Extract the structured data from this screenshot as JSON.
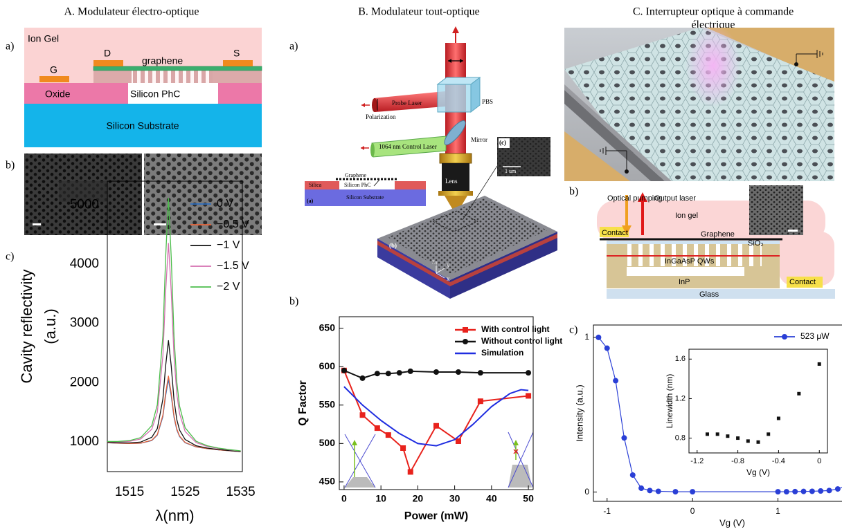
{
  "columns": [
    {
      "title": [
        "A. Modulateur électro-optique"
      ]
    },
    {
      "title": [
        "B. Modulateur tout-optique"
      ]
    },
    {
      "title": [
        "C. Interrupteur optique à commande",
        "électrique"
      ]
    }
  ],
  "panel_labels": {
    "A": [
      "a)",
      "b)",
      "c)"
    ],
    "B": [
      "a)",
      "b)"
    ],
    "C": [
      "a)",
      "b)",
      "c)"
    ]
  },
  "diagram_a": {
    "ion_gel": "Ion Gel",
    "drain": "D",
    "graphene": "graphene",
    "source": "S",
    "gate": "G",
    "oxide": "Oxide",
    "phc": "Silicon PhC",
    "substrate": "Silicon Substrate"
  },
  "diagram_b": {
    "probe": "Probe Laser",
    "polarization": "Polarization",
    "pbs": "PBS",
    "control": "1064 nm Control Laser",
    "mirror": "Mirror",
    "lens": "Lens",
    "graphene": "Graphene",
    "silica": "Silica",
    "phc": "Silicon PhC",
    "substrate": "Silicon Substrate",
    "inset_a": "(a)",
    "inset_b": "(b)",
    "inset_c": "(c)",
    "scale": "1 um",
    "z": "z",
    "y": "y",
    "x": "x"
  },
  "diagram_c": {
    "pumping": "Optical pumping",
    "output": "Output laser",
    "gel": "Ion gel",
    "contact_left": "Contact",
    "graphene": "Graphene",
    "sio2": "SiO₂",
    "qws": "InGaAsP QWs",
    "inp": "InP",
    "contact_right": "Contact",
    "glass": "Glass"
  },
  "chart_data": [
    {
      "type": "line",
      "ylabel": [
        "Cavity reflectivity",
        "(a.u.)"
      ],
      "xlabel": "λ(nm)",
      "x": [
        1511,
        1513,
        1515,
        1517,
        1519,
        1520,
        1521,
        1521.5,
        1522,
        1522.5,
        1523,
        1523.5,
        1524,
        1525,
        1527,
        1529,
        1531,
        1533,
        1535
      ],
      "xlim": [
        1511,
        1535.3
      ],
      "xticks": [
        1515,
        1525,
        1535
      ],
      "ylim": [
        500,
        5400
      ],
      "yticks": [
        1000,
        2000,
        3000,
        4000,
        5000
      ],
      "series": [
        {
          "name": "0 V",
          "color": "#2d6fc2",
          "values": [
            988,
            979,
            974,
            978,
            1024,
            1116,
            1428,
            1785,
            2051,
            1779,
            1415,
            1204,
            1091,
            987,
            916,
            887,
            866,
            851,
            835
          ]
        },
        {
          "name": "−0.5 V",
          "color": "#e8643a",
          "values": [
            988,
            980,
            975,
            980,
            1029,
            1126,
            1454,
            1831,
            2111,
            1825,
            1441,
            1220,
            1101,
            992,
            918,
            888,
            867,
            851,
            836
          ]
        },
        {
          "name": "−1 V",
          "color": "#111111",
          "values": [
            992,
            986,
            984,
            998,
            1079,
            1226,
            1723,
            2289,
            2711,
            2283,
            1710,
            1379,
            1201,
            1042,
            936,
            897,
            873,
            855,
            839
          ]
        },
        {
          "name": "−1.5 V",
          "color": "#d46fb0",
          "values": [
            1003,
            1002,
            1011,
            1050,
            1214,
            1502,
            2456,
            3542,
            4351,
            3536,
            2443,
            1814,
            1477,
            1177,
            988,
            924,
            889,
            866,
            847
          ]
        },
        {
          "name": "−2 V",
          "color": "#4bbd4b",
          "values": [
            1008,
            1010,
            1023,
            1073,
            1277,
            1630,
            2795,
            4123,
            5111,
            4117,
            2782,
            2015,
            1605,
            1240,
            1011,
            936,
            897,
            871,
            850
          ]
        }
      ]
    },
    {
      "type": "line",
      "ylabel": "Q Factor",
      "xlabel": "Power (mW)",
      "xlim": [
        -1.3,
        51.3
      ],
      "xticks": [
        0,
        10,
        20,
        30,
        40,
        50
      ],
      "ylim": [
        440,
        665
      ],
      "yticks": [
        450,
        500,
        550,
        600,
        650
      ],
      "series": [
        {
          "name": "With control light",
          "color": "#e8221c",
          "marker": "square",
          "x": [
            0,
            5,
            9,
            12,
            16,
            18,
            25,
            31,
            37,
            50
          ],
          "values": [
            595,
            537,
            520,
            511,
            494,
            463,
            523,
            503,
            555,
            562
          ]
        },
        {
          "name": "Without control light",
          "color": "#111111",
          "marker": "circle",
          "x": [
            0,
            5,
            9,
            12,
            15,
            18,
            25,
            31,
            37,
            50
          ],
          "values": [
            595,
            585,
            591,
            591,
            592,
            594,
            593,
            593,
            592,
            592
          ]
        },
        {
          "name": "Simulation",
          "color": "#1f2de0",
          "x": [
            0,
            5,
            10,
            15,
            20,
            25,
            30,
            35,
            40,
            45,
            48,
            50
          ],
          "values": [
            574,
            550,
            530,
            513,
            500,
            497,
            505,
            525,
            548,
            565,
            570,
            569
          ]
        }
      ]
    },
    {
      "type": "line",
      "ylabel": "Intensity (a.u.)",
      "xlabel": "Vg (V)",
      "xlim": [
        -1.16,
        2.09
      ],
      "xticks": [
        -1,
        0,
        1,
        2
      ],
      "ylim": [
        -0.06,
        1.08
      ],
      "yticks": [
        0,
        1
      ],
      "x": [
        -1.1,
        -1.0,
        -0.9,
        -0.8,
        -0.7,
        -0.6,
        -0.5,
        -0.4,
        -0.2,
        0,
        1,
        1.1,
        1.2,
        1.3,
        1.4,
        1.5,
        1.6,
        1.7,
        1.8,
        1.9,
        2.0
      ],
      "series": [
        {
          "name": "523 μW",
          "color": "#2a3fd6",
          "marker": "circle",
          "values": [
            1.0,
            0.93,
            0.72,
            0.35,
            0.11,
            0.025,
            0.01,
            0.005,
            0.002,
            0.002,
            0.002,
            0.002,
            0.003,
            0.004,
            0.005,
            0.007,
            0.01,
            0.02,
            0.04,
            0.08,
            0.13
          ]
        }
      ]
    },
    {
      "type": "scatter",
      "ylabel": "Linewidth (nm)",
      "xlabel": "Vg (V)",
      "xlim": [
        -1.28,
        0.08
      ],
      "xticks": [
        -1.2,
        -0.8,
        -0.4,
        0
      ],
      "ylim": [
        0.65,
        1.7
      ],
      "yticks": [
        0.8,
        1.2,
        1.6
      ],
      "color": "#111111",
      "marker": "square",
      "x": [
        -1.1,
        -1.0,
        -0.9,
        -0.8,
        -0.7,
        -0.6,
        -0.5,
        -0.4,
        -0.2,
        0
      ],
      "values": [
        0.84,
        0.84,
        0.82,
        0.8,
        0.77,
        0.76,
        0.84,
        1.0,
        1.25,
        1.55
      ]
    }
  ]
}
